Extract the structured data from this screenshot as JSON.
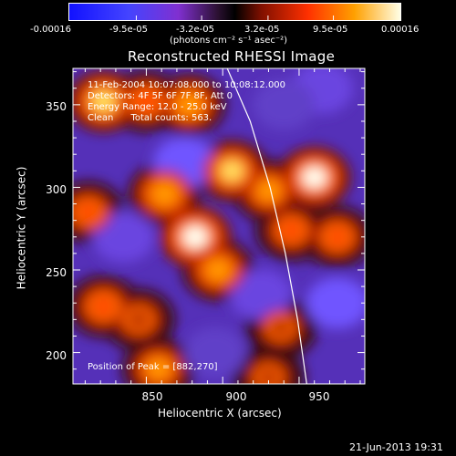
{
  "chart_data": {
    "type": "heatmap",
    "title": "Reconstructed RHESSI Image",
    "xlabel": "Heliocentric X (arcsec)",
    "ylabel": "Heliocentric Y (arcsec)",
    "xlim": [
      802,
      993
    ],
    "ylim": [
      181,
      372
    ],
    "x_ticks": [
      "850",
      "900",
      "950"
    ],
    "y_ticks": [
      "350",
      "300",
      "250",
      "200"
    ],
    "x_tick_values": [
      850,
      900,
      950
    ],
    "y_tick_values": [
      350,
      300,
      250,
      200
    ],
    "colorbar": {
      "min": -0.00016,
      "max": 0.00016,
      "tick_labels": [
        "-0.00016",
        "-9.5e-05",
        "-3.2e-05",
        "3.2e-05",
        "9.5e-05",
        "0.00016"
      ],
      "tick_values": [
        -0.00016,
        -9.5e-05,
        -3.2e-05,
        3.2e-05,
        9.5e-05,
        0.00016
      ],
      "unit_label": "(photons cm⁻² s⁻¹ asec⁻²)"
    },
    "annotations": {
      "time_range": "11-Feb-2004 10:07:08.000 to 10:08:12.000",
      "detectors": "Detectors: 4F 5F 6F 7F 8F, Att 0",
      "energy_range": "Energy Range: 12.0 - 25.0 keV",
      "algorithm": "Clean      Total counts: 563.",
      "peak": "Position of Peak = [882,270]"
    },
    "peak": {
      "x": 882,
      "y": 270
    },
    "limb_curve": [
      {
        "x": 903,
        "y": 372
      },
      {
        "x": 918,
        "y": 340
      },
      {
        "x": 931,
        "y": 300
      },
      {
        "x": 941,
        "y": 260
      },
      {
        "x": 949,
        "y": 220
      },
      {
        "x": 955,
        "y": 181
      }
    ],
    "sources": [
      {
        "x": 882,
        "y": 270,
        "value": 0.00015
      },
      {
        "x": 897,
        "y": 250,
        "value": 0.0001
      },
      {
        "x": 862,
        "y": 296,
        "value": 0.00011
      },
      {
        "x": 822,
        "y": 352,
        "value": 0.00013
      },
      {
        "x": 850,
        "y": 352,
        "value": 8e-05
      },
      {
        "x": 878,
        "y": 350,
        "value": 0.0001
      },
      {
        "x": 960,
        "y": 306,
        "value": 0.00014
      },
      {
        "x": 930,
        "y": 298,
        "value": 9e-05
      },
      {
        "x": 906,
        "y": 310,
        "value": 0.00012
      },
      {
        "x": 822,
        "y": 228,
        "value": 8e-05
      },
      {
        "x": 945,
        "y": 274,
        "value": 7e-05
      },
      {
        "x": 845,
        "y": 220,
        "value": 6e-05
      },
      {
        "x": 858,
        "y": 190,
        "value": 9e-05
      },
      {
        "x": 812,
        "y": 285,
        "value": 7e-05
      },
      {
        "x": 975,
        "y": 270,
        "value": 7e-05
      },
      {
        "x": 938,
        "y": 215,
        "value": 5e-05
      },
      {
        "x": 930,
        "y": 185,
        "value": 5e-05
      }
    ],
    "negative_regions": [
      {
        "x": 875,
        "y": 315,
        "value": -0.00012
      },
      {
        "x": 835,
        "y": 270,
        "value": -0.00011
      },
      {
        "x": 975,
        "y": 230,
        "value": -0.00012
      },
      {
        "x": 925,
        "y": 235,
        "value": -0.00011
      },
      {
        "x": 895,
        "y": 200,
        "value": -8e-05
      },
      {
        "x": 965,
        "y": 360,
        "value": -9e-05
      },
      {
        "x": 940,
        "y": 350,
        "value": -7e-05
      }
    ]
  },
  "footer": {
    "timestamp": "21-Jun-2013 19:31"
  }
}
